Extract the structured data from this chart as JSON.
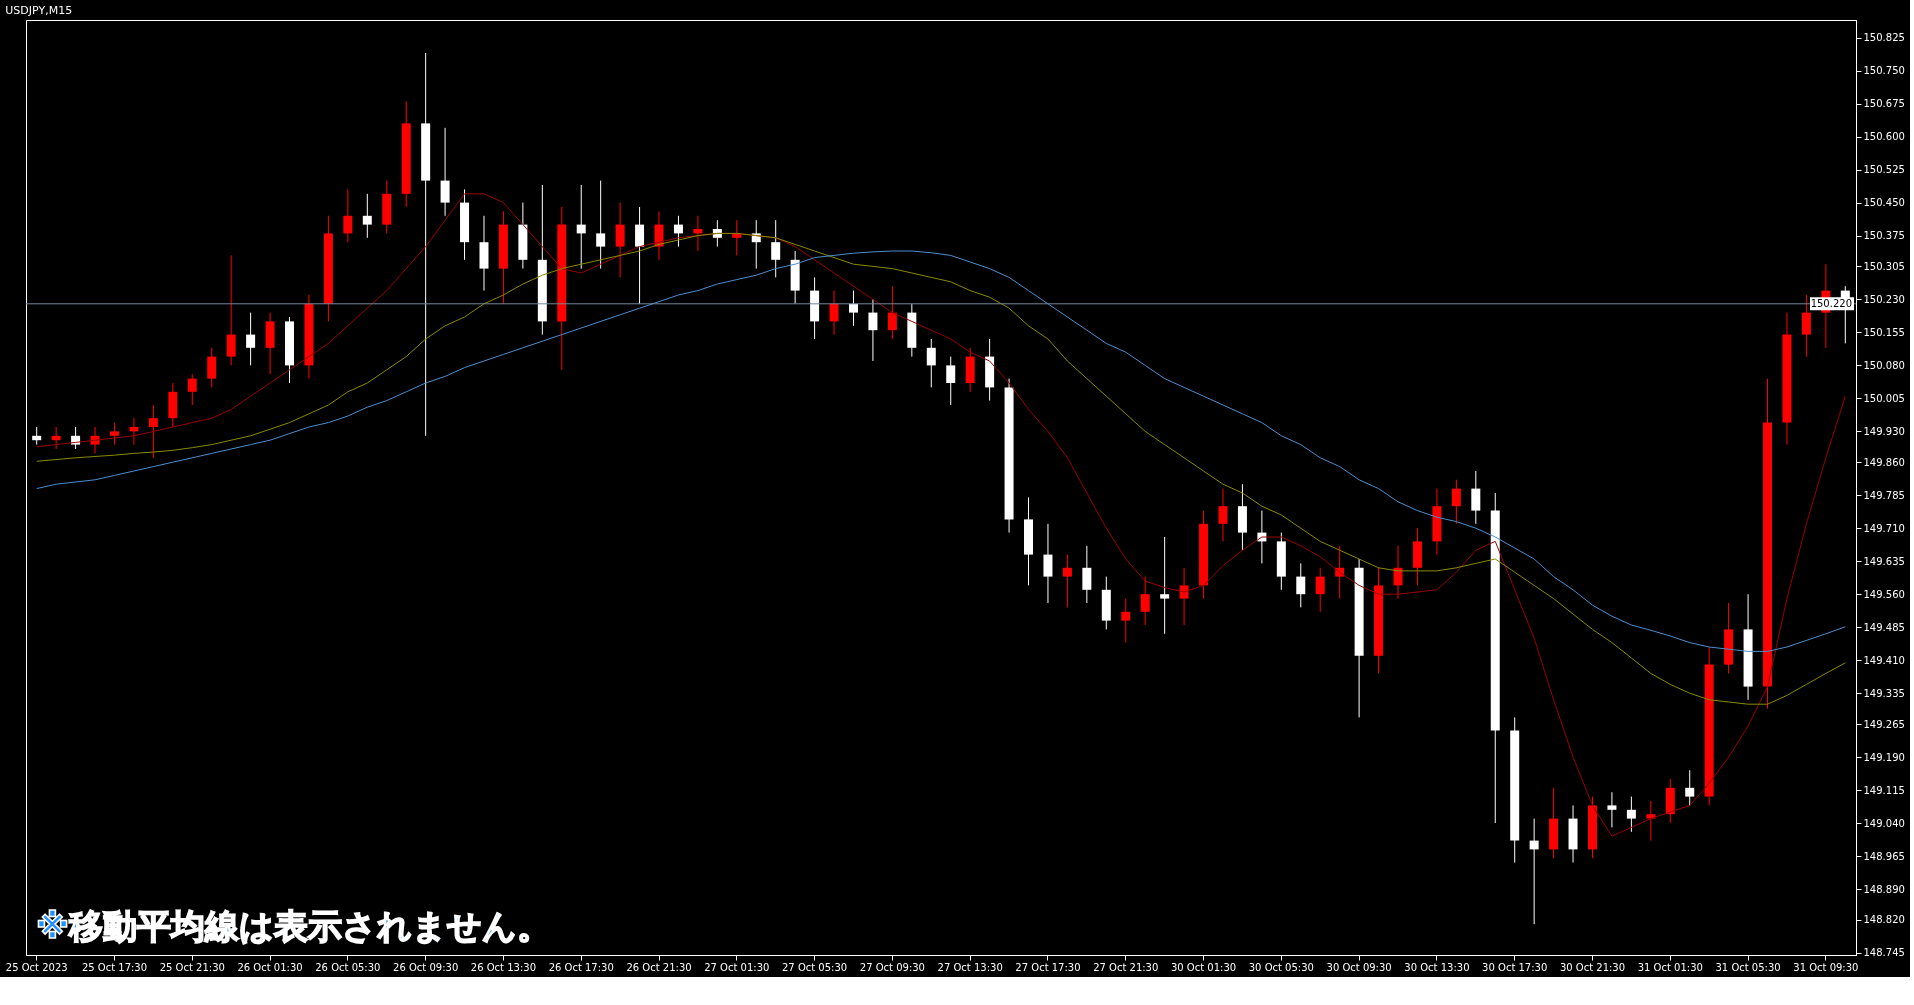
{
  "chart_data": {
    "type": "candlestick",
    "title": "USDJPY,M15",
    "categories": [
      "25 Oct 2023",
      null,
      null,
      null,
      "25 Oct 17:30",
      null,
      null,
      null,
      "25 Oct 21:30",
      null,
      null,
      null,
      "26 Oct 01:30",
      null,
      null,
      null,
      "26 Oct 05:30",
      null,
      null,
      null,
      "26 Oct 09:30",
      null,
      null,
      null,
      "26 Oct 13:30",
      null,
      null,
      null,
      "26 Oct 17:30",
      null,
      null,
      null,
      "26 Oct 21:30",
      null,
      null,
      null,
      "27 Oct 01:30",
      null,
      null,
      null,
      "27 Oct 05:30",
      null,
      null,
      null,
      "27 Oct 09:30",
      null,
      null,
      null,
      "27 Oct 13:30",
      null,
      null,
      null,
      "27 Oct 17:30",
      null,
      null,
      null,
      "27 Oct 21:30",
      null,
      null,
      null,
      "30 Oct 01:30",
      null,
      null,
      null,
      "30 Oct 05:30",
      null,
      null,
      null,
      "30 Oct 09:30",
      null,
      null,
      null,
      "30 Oct 13:30",
      null,
      null,
      null,
      "30 Oct 17:30",
      null,
      null,
      null,
      "30 Oct 21:30",
      null,
      null,
      null,
      "31 Oct 01:30",
      null,
      null,
      null,
      "31 Oct 05:30",
      null,
      null,
      null,
      "31 Oct 09:30",
      null
    ],
    "ohlc": [
      [
        149.92,
        149.94,
        149.9,
        149.91
      ],
      [
        149.91,
        149.94,
        149.89,
        149.92
      ],
      [
        149.92,
        149.94,
        149.89,
        149.9
      ],
      [
        149.9,
        149.94,
        149.88,
        149.92
      ],
      [
        149.92,
        149.95,
        149.9,
        149.93
      ],
      [
        149.93,
        149.96,
        149.9,
        149.94
      ],
      [
        149.94,
        149.99,
        149.87,
        149.96
      ],
      [
        149.96,
        150.04,
        149.94,
        150.02
      ],
      [
        150.02,
        150.06,
        149.99,
        150.05
      ],
      [
        150.05,
        150.12,
        150.03,
        150.1
      ],
      [
        150.1,
        150.33,
        150.08,
        150.15
      ],
      [
        150.15,
        150.2,
        150.08,
        150.12
      ],
      [
        150.12,
        150.2,
        150.06,
        150.18
      ],
      [
        150.18,
        150.19,
        150.04,
        150.08
      ],
      [
        150.08,
        150.24,
        150.05,
        150.22
      ],
      [
        150.22,
        150.42,
        150.18,
        150.38
      ],
      [
        150.38,
        150.48,
        150.36,
        150.42
      ],
      [
        150.42,
        150.47,
        150.37,
        150.4
      ],
      [
        150.4,
        150.5,
        150.38,
        150.47
      ],
      [
        150.47,
        150.68,
        150.44,
        150.63
      ],
      [
        150.63,
        150.79,
        149.92,
        150.5
      ],
      [
        150.5,
        150.62,
        150.42,
        150.45
      ],
      [
        150.45,
        150.48,
        150.32,
        150.36
      ],
      [
        150.36,
        150.42,
        150.25,
        150.3
      ],
      [
        150.3,
        150.43,
        150.22,
        150.4
      ],
      [
        150.4,
        150.45,
        150.3,
        150.32
      ],
      [
        150.32,
        150.49,
        150.15,
        150.18
      ],
      [
        150.18,
        150.44,
        150.07,
        150.4
      ],
      [
        150.4,
        150.49,
        150.3,
        150.38
      ],
      [
        150.38,
        150.5,
        150.3,
        150.35
      ],
      [
        150.35,
        150.45,
        150.28,
        150.4
      ],
      [
        150.4,
        150.44,
        150.22,
        150.35
      ],
      [
        150.35,
        150.43,
        150.32,
        150.4
      ],
      [
        150.4,
        150.42,
        150.35,
        150.38
      ],
      [
        150.38,
        150.42,
        150.34,
        150.39
      ],
      [
        150.39,
        150.41,
        150.35,
        150.37
      ],
      [
        150.37,
        150.41,
        150.33,
        150.38
      ],
      [
        150.38,
        150.41,
        150.3,
        150.36
      ],
      [
        150.36,
        150.41,
        150.28,
        150.32
      ],
      [
        150.32,
        150.34,
        150.22,
        150.25
      ],
      [
        150.25,
        150.28,
        150.14,
        150.18
      ],
      [
        150.18,
        150.25,
        150.15,
        150.22
      ],
      [
        150.22,
        150.25,
        150.17,
        150.2
      ],
      [
        150.2,
        150.23,
        150.09,
        150.16
      ],
      [
        150.16,
        150.26,
        150.14,
        150.2
      ],
      [
        150.2,
        150.22,
        150.1,
        150.12
      ],
      [
        150.12,
        150.14,
        150.03,
        150.08
      ],
      [
        150.08,
        150.1,
        149.99,
        150.04
      ],
      [
        150.04,
        150.12,
        150.02,
        150.1
      ],
      [
        150.1,
        150.14,
        150.0,
        150.03
      ],
      [
        150.03,
        150.05,
        149.7,
        149.73
      ],
      [
        149.73,
        149.78,
        149.58,
        149.65
      ],
      [
        149.65,
        149.72,
        149.54,
        149.6
      ],
      [
        149.6,
        149.65,
        149.53,
        149.62
      ],
      [
        149.62,
        149.67,
        149.54,
        149.57
      ],
      [
        149.57,
        149.6,
        149.48,
        149.5
      ],
      [
        149.5,
        149.55,
        149.45,
        149.52
      ],
      [
        149.52,
        149.6,
        149.49,
        149.56
      ],
      [
        149.56,
        149.69,
        149.47,
        149.55
      ],
      [
        149.55,
        149.62,
        149.49,
        149.58
      ],
      [
        149.58,
        149.75,
        149.55,
        149.72
      ],
      [
        149.72,
        149.8,
        149.68,
        149.76
      ],
      [
        149.76,
        149.81,
        149.66,
        149.7
      ],
      [
        149.7,
        149.75,
        149.63,
        149.68
      ],
      [
        149.68,
        149.7,
        149.57,
        149.6
      ],
      [
        149.6,
        149.63,
        149.53,
        149.56
      ],
      [
        149.56,
        149.62,
        149.52,
        149.6
      ],
      [
        149.6,
        149.67,
        149.55,
        149.62
      ],
      [
        149.62,
        149.64,
        149.28,
        149.42
      ],
      [
        149.42,
        149.62,
        149.38,
        149.58
      ],
      [
        149.58,
        149.67,
        149.55,
        149.62
      ],
      [
        149.62,
        149.71,
        149.58,
        149.68
      ],
      [
        149.68,
        149.8,
        149.65,
        149.76
      ],
      [
        149.76,
        149.82,
        149.72,
        149.8
      ],
      [
        149.8,
        149.84,
        149.72,
        149.75
      ],
      [
        149.75,
        149.79,
        149.04,
        149.25
      ],
      [
        149.25,
        149.28,
        148.95,
        149.0
      ],
      [
        149.0,
        149.05,
        148.81,
        148.98
      ],
      [
        148.98,
        149.12,
        148.96,
        149.05
      ],
      [
        149.05,
        149.08,
        148.95,
        148.98
      ],
      [
        148.98,
        149.1,
        148.96,
        149.08
      ],
      [
        149.08,
        149.11,
        149.03,
        149.07
      ],
      [
        149.07,
        149.1,
        149.02,
        149.05
      ],
      [
        149.05,
        149.09,
        149.0,
        149.06
      ],
      [
        149.06,
        149.14,
        149.04,
        149.12
      ],
      [
        149.12,
        149.16,
        149.08,
        149.1
      ],
      [
        149.1,
        149.44,
        149.08,
        149.4
      ],
      [
        149.4,
        149.54,
        149.38,
        149.48
      ],
      [
        149.48,
        149.56,
        149.32,
        149.35
      ],
      [
        149.35,
        150.05,
        149.3,
        149.95
      ],
      [
        149.95,
        150.2,
        149.9,
        150.15
      ],
      [
        150.15,
        150.24,
        150.1,
        150.2
      ],
      [
        150.2,
        150.31,
        150.12,
        150.25
      ],
      [
        150.25,
        150.26,
        150.13,
        150.22
      ]
    ],
    "colors": [
      "#ffffff",
      "#ff0000",
      "#ffffff",
      "#ff0000",
      "#ff0000",
      "#ff0000",
      "#ff0000",
      "#ff0000",
      "#ff0000",
      "#ff0000",
      "#ff0000",
      "#ffffff",
      "#ff0000",
      "#ffffff",
      "#ff0000",
      "#ff0000",
      "#ff0000",
      "#ffffff",
      "#ff0000",
      "#ff0000",
      "#ffffff",
      "#ffffff",
      "#ffffff",
      "#ffffff",
      "#ff0000",
      "#ffffff",
      "#ffffff",
      "#ff0000",
      "#ffffff",
      "#ffffff",
      "#ff0000",
      "#ffffff",
      "#ff0000",
      "#ffffff",
      "#ff0000",
      "#ffffff",
      "#ff0000",
      "#ffffff",
      "#ffffff",
      "#ffffff",
      "#ffffff",
      "#ff0000",
      "#ffffff",
      "#ffffff",
      "#ff0000",
      "#ffffff",
      "#ffffff",
      "#ffffff",
      "#ff0000",
      "#ffffff",
      "#ffffff",
      "#ffffff",
      "#ffffff",
      "#ff0000",
      "#ffffff",
      "#ffffff",
      "#ff0000",
      "#ff0000",
      "#ffffff",
      "#ff0000",
      "#ff0000",
      "#ff0000",
      "#ffffff",
      "#ffffff",
      "#ffffff",
      "#ffffff",
      "#ff0000",
      "#ff0000",
      "#ffffff",
      "#ff0000",
      "#ff0000",
      "#ff0000",
      "#ff0000",
      "#ff0000",
      "#ffffff",
      "#ffffff",
      "#ffffff",
      "#ffffff",
      "#ff0000",
      "#ffffff",
      "#ff0000",
      "#ffffff",
      "#ffffff",
      "#ff0000",
      "#ff0000",
      "#ffffff",
      "#ff0000",
      "#ff0000",
      "#ffffff",
      "#ff0000",
      "#ff0000",
      "#ff0000",
      "#ff0000",
      "#ffffff"
    ],
    "series": [
      {
        "type": "line",
        "color": "#990000",
        "values": [
          149.895,
          149.9,
          149.905,
          149.91,
          149.915,
          149.92,
          149.93,
          149.94,
          149.95,
          149.96,
          149.98,
          150.01,
          150.04,
          150.07,
          150.1,
          150.13,
          150.17,
          150.21,
          150.25,
          150.3,
          150.35,
          150.41,
          150.47,
          150.47,
          150.45,
          150.4,
          150.35,
          150.3,
          150.29,
          150.31,
          150.33,
          150.35,
          150.36,
          150.37,
          150.375,
          150.38,
          150.38,
          150.375,
          150.37,
          150.35,
          150.32,
          150.29,
          150.26,
          150.23,
          150.2,
          150.18,
          150.16,
          150.14,
          150.11,
          150.09,
          150.04,
          149.98,
          149.93,
          149.87,
          149.79,
          149.71,
          149.64,
          149.59,
          149.575,
          149.565,
          149.58,
          149.625,
          149.66,
          149.69,
          149.69,
          149.67,
          149.645,
          149.61,
          149.58,
          149.56,
          149.56,
          149.565,
          149.57,
          149.61,
          149.66,
          149.68,
          149.57,
          149.46,
          149.32,
          149.19,
          149.08,
          149.01,
          149.03,
          149.05,
          149.065,
          149.08,
          149.13,
          149.19,
          149.26,
          149.35,
          149.55,
          149.72,
          149.87,
          150.01
        ]
      },
      {
        "type": "line",
        "color": "#8a8a00",
        "values": [
          149.862,
          149.866,
          149.87,
          149.873,
          149.876,
          149.88,
          149.883,
          149.887,
          149.893,
          149.9,
          149.91,
          149.92,
          149.935,
          149.95,
          149.97,
          149.99,
          150.02,
          150.04,
          150.07,
          150.1,
          150.14,
          150.17,
          150.19,
          150.22,
          150.24,
          150.265,
          150.285,
          150.3,
          150.31,
          150.32,
          150.33,
          150.34,
          150.355,
          150.365,
          150.375,
          150.38,
          150.38,
          150.375,
          150.37,
          150.355,
          150.34,
          150.325,
          150.31,
          150.305,
          150.3,
          150.29,
          150.28,
          150.27,
          150.25,
          150.235,
          150.21,
          150.17,
          150.14,
          150.09,
          150.05,
          150.01,
          149.97,
          149.93,
          149.9,
          149.87,
          149.84,
          149.81,
          149.79,
          149.76,
          149.74,
          149.71,
          149.68,
          149.66,
          149.64,
          149.62,
          149.613,
          149.613,
          149.613,
          149.62,
          149.63,
          149.64,
          149.61,
          149.58,
          149.55,
          149.515,
          149.48,
          149.45,
          149.415,
          149.38,
          149.355,
          149.335,
          149.32,
          149.315,
          149.31,
          149.31,
          149.33,
          149.355,
          149.38,
          149.404
        ]
      },
      {
        "type": "line",
        "color": "#4a8fd0",
        "values": [
          149.8,
          149.81,
          149.815,
          149.82,
          149.83,
          149.84,
          149.85,
          149.86,
          149.87,
          149.88,
          149.89,
          149.9,
          149.91,
          149.925,
          149.94,
          149.95,
          149.965,
          149.985,
          150.0,
          150.02,
          150.04,
          150.055,
          150.075,
          150.09,
          150.105,
          150.12,
          150.135,
          150.15,
          150.165,
          150.18,
          150.195,
          150.21,
          150.225,
          150.24,
          150.25,
          150.265,
          150.275,
          150.285,
          150.3,
          150.31,
          150.325,
          150.33,
          150.335,
          150.338,
          150.34,
          150.34,
          150.336,
          150.33,
          150.315,
          150.3,
          150.28,
          150.25,
          150.22,
          150.19,
          150.16,
          150.13,
          150.11,
          150.08,
          150.05,
          150.03,
          150.01,
          149.99,
          149.97,
          149.95,
          149.92,
          149.9,
          149.87,
          149.85,
          149.82,
          149.8,
          149.77,
          149.75,
          149.735,
          149.725,
          149.71,
          149.69,
          149.665,
          149.64,
          149.6,
          149.57,
          149.535,
          149.51,
          149.49,
          149.478,
          149.465,
          149.45,
          149.44,
          149.435,
          149.43,
          149.43,
          149.44,
          149.455,
          149.47,
          149.486
        ]
      }
    ],
    "ylim": [
      148.74,
      150.865
    ],
    "yticks": [
      148.745,
      {
        "value": 148.82,
        "label": "148.820"
      },
      {
        "value": 148.89,
        "label": "148.890"
      },
      148.965,
      {
        "value": 149.04,
        "label": "149.040"
      },
      149.115,
      {
        "value": 149.19,
        "label": "149.190"
      },
      149.265,
      149.335,
      {
        "value": 149.41,
        "label": "149.410"
      },
      149.485,
      {
        "value": 149.56,
        "label": "149.560"
      },
      149.635,
      {
        "value": 149.71,
        "label": "149.710"
      },
      149.785,
      {
        "value": 149.86,
        "label": "149.860"
      },
      {
        "value": 149.93,
        "label": "149.930"
      },
      150.005,
      {
        "value": 150.08,
        "label": "150.080"
      },
      150.155,
      {
        "value": 150.23,
        "label": "150.230"
      },
      150.305,
      150.375,
      {
        "value": 150.45,
        "label": "150.450"
      },
      150.525,
      {
        "value": 150.6,
        "label": "150.600"
      },
      150.675,
      {
        "value": 150.75,
        "label": "150.750"
      },
      150.825
    ],
    "ref_lines": [
      {
        "axis": "y",
        "value": 150.22,
        "label": "150.220",
        "color": "#778899"
      }
    ],
    "annotations": [
      "※移動平均線は表示されません。"
    ]
  }
}
